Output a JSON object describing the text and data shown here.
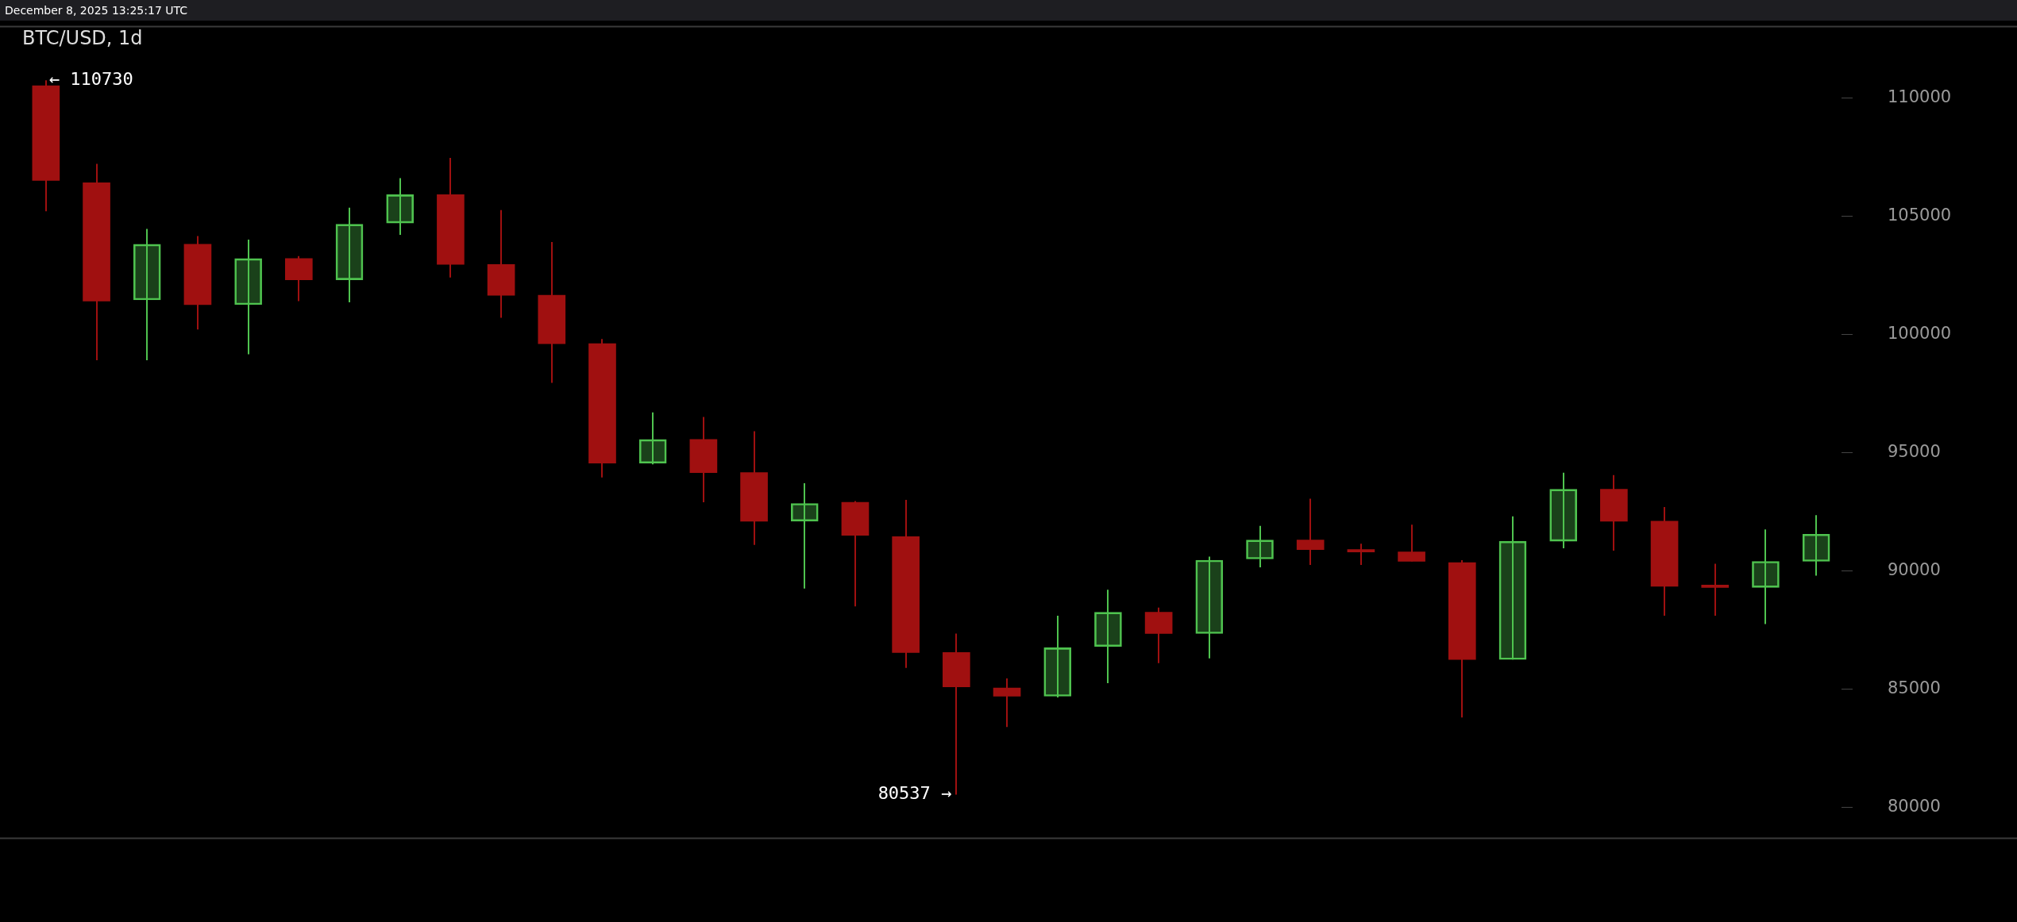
{
  "chart_data": {
    "type": "candlestick",
    "title": "BTC/USD, 1d",
    "annotations": [
      "December 8, 2025 13:25:17 UTC",
      "← 110730",
      "80537 →"
    ],
    "categories": [
      null,
      null,
      null,
      null,
      null,
      null,
      null,
      null,
      null,
      null,
      null,
      null,
      null,
      null,
      null,
      null,
      null,
      null,
      null,
      null,
      null,
      null,
      null,
      null,
      null,
      null,
      null,
      null,
      null,
      null,
      null,
      null,
      null,
      null,
      null,
      null
    ],
    "ohlc": [
      [
        110500,
        110730,
        105200,
        106500
      ],
      [
        106400,
        107200,
        98900,
        101400
      ],
      [
        101450,
        104450,
        98900,
        103800
      ],
      [
        103800,
        104150,
        100200,
        101250
      ],
      [
        101250,
        104000,
        99150,
        103200
      ],
      [
        103200,
        103300,
        101400,
        102300
      ],
      [
        102300,
        105350,
        101350,
        104650
      ],
      [
        104700,
        106600,
        104200,
        105900
      ],
      [
        105900,
        107450,
        102400,
        102950
      ],
      [
        102950,
        105250,
        100700,
        101650
      ],
      [
        101650,
        103900,
        97950,
        99600
      ],
      [
        99600,
        99800,
        93950,
        94550
      ],
      [
        94550,
        96700,
        94500,
        95550
      ],
      [
        95550,
        96500,
        92900,
        94150
      ],
      [
        94150,
        95900,
        91100,
        92100
      ],
      [
        92100,
        93700,
        89250,
        92850
      ],
      [
        92900,
        92950,
        88500,
        91500
      ],
      [
        91450,
        93000,
        85900,
        86550
      ],
      [
        86550,
        87350,
        80537,
        85100
      ],
      [
        85050,
        85450,
        83400,
        84700
      ],
      [
        84700,
        88100,
        84650,
        86750
      ],
      [
        86800,
        89200,
        85250,
        88250
      ],
      [
        88250,
        88450,
        86100,
        87350
      ],
      [
        87350,
        90600,
        86300,
        90450
      ],
      [
        90500,
        91900,
        90150,
        91300
      ],
      [
        91300,
        93050,
        90250,
        90900
      ],
      [
        90900,
        91150,
        90250,
        90800
      ],
      [
        90800,
        91950,
        90400,
        90400
      ],
      [
        90350,
        90450,
        83800,
        86250
      ],
      [
        86250,
        92300,
        86250,
        91250
      ],
      [
        91250,
        94150,
        90950,
        93450
      ],
      [
        93450,
        94050,
        90850,
        92100
      ],
      [
        92100,
        92700,
        88100,
        89350
      ],
      [
        89350,
        90300,
        88100,
        89300
      ],
      [
        89300,
        91750,
        87750,
        90400
      ],
      [
        90400,
        92350,
        89800,
        91550
      ]
    ],
    "colors": [
      "#a01010",
      "#a01010",
      "#4fc34f",
      "#a01010",
      "#4fc34f",
      "#a01010",
      "#4fc34f",
      "#4fc34f",
      "#a01010",
      "#a01010",
      "#a01010",
      "#a01010",
      "#4fc34f",
      "#a01010",
      "#a01010",
      "#4fc34f",
      "#a01010",
      "#a01010",
      "#a01010",
      "#a01010",
      "#4fc34f",
      "#4fc34f",
      "#a01010",
      "#4fc34f",
      "#4fc34f",
      "#a01010",
      "#a01010",
      "#a01010",
      "#a01010",
      "#4fc34f",
      "#4fc34f",
      "#a01010",
      "#a01010",
      "#a01010",
      "#4fc34f",
      "#4fc34f"
    ],
    "ylim": [
      78700,
      113000
    ],
    "yticks": [
      80000,
      85000,
      90000,
      95000,
      100000,
      105000,
      110000
    ],
    "grid": false
  }
}
